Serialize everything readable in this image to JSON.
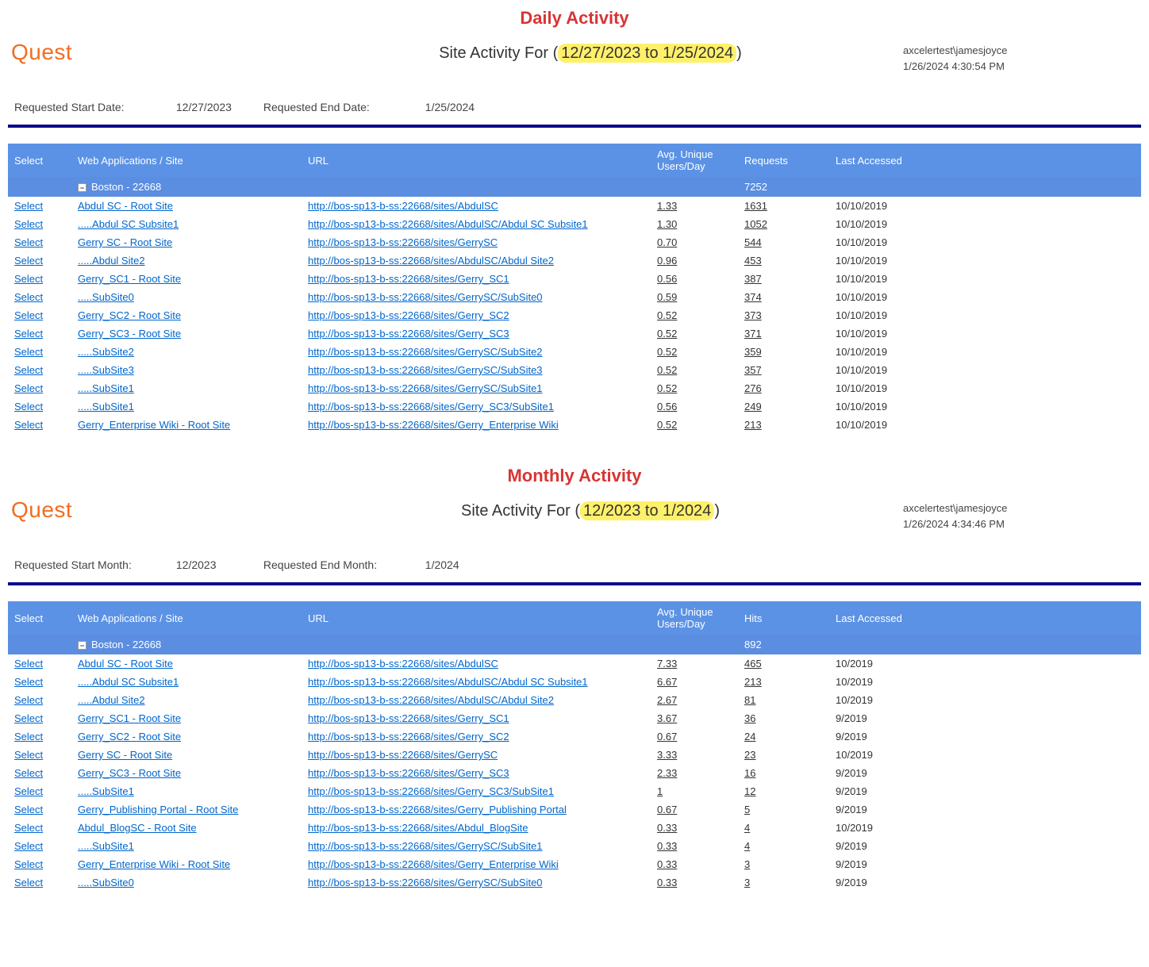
{
  "colors": {
    "section_title": "#d83535",
    "logo": "#f26d21",
    "highlight_bg": "#fff06a",
    "header_bg": "#5b92e5",
    "group_bg": "#5b8de0",
    "header_fg": "#ffffff",
    "link": "#0066cc",
    "navy_bar": "#0a0a8c"
  },
  "daily": {
    "section_title": "Daily Activity",
    "logo": "Quest",
    "title_prefix": "Site Activity For (",
    "title_range": "12/27/2023 to 1/25/2024",
    "title_suffix": ")",
    "user": "axcelertest\\jamesjoyce",
    "generated": "1/26/2024 4:30:54 PM",
    "params": {
      "start_label": "Requested Start Date:",
      "start_value": "12/27/2023",
      "end_label": "Requested End Date:",
      "end_value": "1/25/2024"
    },
    "columns": {
      "select": "Select",
      "site": "Web Applications / Site",
      "url": "URL",
      "avg": "Avg. Unique Users/Day",
      "metric": "Requests",
      "last": "Last Accessed"
    },
    "group": {
      "label": "Boston - 22668",
      "metric": "7252"
    },
    "select_label": "Select",
    "rows": [
      {
        "site": "Abdul SC - Root Site",
        "url": "http://bos-sp13-b-ss:22668/sites/AbdulSC",
        "avg": "1.33",
        "metric": "1631",
        "last": "10/10/2019"
      },
      {
        "site": ".....Abdul SC Subsite1",
        "url": "http://bos-sp13-b-ss:22668/sites/AbdulSC/Abdul SC Subsite1",
        "avg": "1.30",
        "metric": "1052",
        "last": "10/10/2019"
      },
      {
        "site": "Gerry SC - Root Site",
        "url": "http://bos-sp13-b-ss:22668/sites/GerrySC",
        "avg": "0.70",
        "metric": "544",
        "last": "10/10/2019"
      },
      {
        "site": ".....Abdul Site2",
        "url": "http://bos-sp13-b-ss:22668/sites/AbdulSC/Abdul Site2",
        "avg": "0.96",
        "metric": "453",
        "last": "10/10/2019"
      },
      {
        "site": "Gerry_SC1 - Root Site",
        "url": "http://bos-sp13-b-ss:22668/sites/Gerry_SC1",
        "avg": "0.56",
        "metric": "387",
        "last": "10/10/2019"
      },
      {
        "site": ".....SubSite0",
        "url": "http://bos-sp13-b-ss:22668/sites/GerrySC/SubSite0",
        "avg": "0.59",
        "metric": "374",
        "last": "10/10/2019"
      },
      {
        "site": "Gerry_SC2 - Root Site",
        "url": "http://bos-sp13-b-ss:22668/sites/Gerry_SC2",
        "avg": "0.52",
        "metric": "373",
        "last": "10/10/2019"
      },
      {
        "site": "Gerry_SC3 - Root Site",
        "url": "http://bos-sp13-b-ss:22668/sites/Gerry_SC3",
        "avg": "0.52",
        "metric": "371",
        "last": "10/10/2019"
      },
      {
        "site": ".....SubSite2",
        "url": "http://bos-sp13-b-ss:22668/sites/GerrySC/SubSite2",
        "avg": "0.52",
        "metric": "359",
        "last": "10/10/2019"
      },
      {
        "site": ".....SubSite3",
        "url": "http://bos-sp13-b-ss:22668/sites/GerrySC/SubSite3",
        "avg": "0.52",
        "metric": "357",
        "last": "10/10/2019"
      },
      {
        "site": ".....SubSite1",
        "url": "http://bos-sp13-b-ss:22668/sites/GerrySC/SubSite1",
        "avg": "0.52",
        "metric": "276",
        "last": "10/10/2019"
      },
      {
        "site": ".....SubSite1",
        "url": "http://bos-sp13-b-ss:22668/sites/Gerry_SC3/SubSite1",
        "avg": "0.56",
        "metric": "249",
        "last": "10/10/2019"
      },
      {
        "site": "Gerry_Enterprise Wiki - Root Site",
        "url": "http://bos-sp13-b-ss:22668/sites/Gerry_Enterprise Wiki",
        "avg": "0.52",
        "metric": "213",
        "last": "10/10/2019"
      }
    ]
  },
  "monthly": {
    "section_title": "Monthly Activity",
    "logo": "Quest",
    "title_prefix": "Site Activity For (",
    "title_range": "12/2023 to 1/2024",
    "title_suffix": ")",
    "user": "axcelertest\\jamesjoyce",
    "generated": "1/26/2024 4:34:46 PM",
    "params": {
      "start_label": "Requested Start Month:",
      "start_value": "12/2023",
      "end_label": "Requested End Month:",
      "end_value": "1/2024"
    },
    "columns": {
      "select": "Select",
      "site": "Web Applications / Site",
      "url": "URL",
      "avg": "Avg. Unique Users/Day",
      "metric": "Hits",
      "last": "Last Accessed"
    },
    "group": {
      "label": "Boston - 22668",
      "metric": "892"
    },
    "select_label": "Select",
    "rows": [
      {
        "site": "Abdul SC - Root Site",
        "url": "http://bos-sp13-b-ss:22668/sites/AbdulSC",
        "avg": "7.33",
        "metric": "465",
        "last": "10/2019"
      },
      {
        "site": ".....Abdul SC Subsite1",
        "url": "http://bos-sp13-b-ss:22668/sites/AbdulSC/Abdul SC Subsite1",
        "avg": "6.67",
        "metric": "213",
        "last": "10/2019"
      },
      {
        "site": ".....Abdul Site2",
        "url": "http://bos-sp13-b-ss:22668/sites/AbdulSC/Abdul Site2",
        "avg": "2.67",
        "metric": "81",
        "last": "10/2019"
      },
      {
        "site": "Gerry_SC1 - Root Site",
        "url": "http://bos-sp13-b-ss:22668/sites/Gerry_SC1",
        "avg": "3.67",
        "metric": "36",
        "last": "9/2019"
      },
      {
        "site": "Gerry_SC2 - Root Site",
        "url": "http://bos-sp13-b-ss:22668/sites/Gerry_SC2",
        "avg": "0.67",
        "metric": "24",
        "last": "9/2019"
      },
      {
        "site": "Gerry SC - Root Site",
        "url": "http://bos-sp13-b-ss:22668/sites/GerrySC",
        "avg": "3.33",
        "metric": "23",
        "last": "10/2019"
      },
      {
        "site": "Gerry_SC3 - Root Site",
        "url": "http://bos-sp13-b-ss:22668/sites/Gerry_SC3",
        "avg": "2.33",
        "metric": "16",
        "last": "9/2019"
      },
      {
        "site": ".....SubSite1",
        "url": "http://bos-sp13-b-ss:22668/sites/Gerry_SC3/SubSite1",
        "avg": "1",
        "metric": "12",
        "last": "9/2019"
      },
      {
        "site": "Gerry_Publishing Portal - Root Site",
        "url": "http://bos-sp13-b-ss:22668/sites/Gerry_Publishing Portal",
        "avg": "0.67",
        "metric": "5",
        "last": "9/2019"
      },
      {
        "site": "Abdul_BlogSC - Root Site",
        "url": "http://bos-sp13-b-ss:22668/sites/Abdul_BlogSite",
        "avg": "0.33",
        "metric": "4",
        "last": "10/2019"
      },
      {
        "site": ".....SubSite1",
        "url": "http://bos-sp13-b-ss:22668/sites/GerrySC/SubSite1",
        "avg": "0.33",
        "metric": "4",
        "last": "9/2019"
      },
      {
        "site": "Gerry_Enterprise Wiki - Root Site",
        "url": "http://bos-sp13-b-ss:22668/sites/Gerry_Enterprise Wiki",
        "avg": "0.33",
        "metric": "3",
        "last": "9/2019"
      },
      {
        "site": ".....SubSite0",
        "url": "http://bos-sp13-b-ss:22668/sites/GerrySC/SubSite0",
        "avg": "0.33",
        "metric": "3",
        "last": "9/2019"
      }
    ]
  }
}
